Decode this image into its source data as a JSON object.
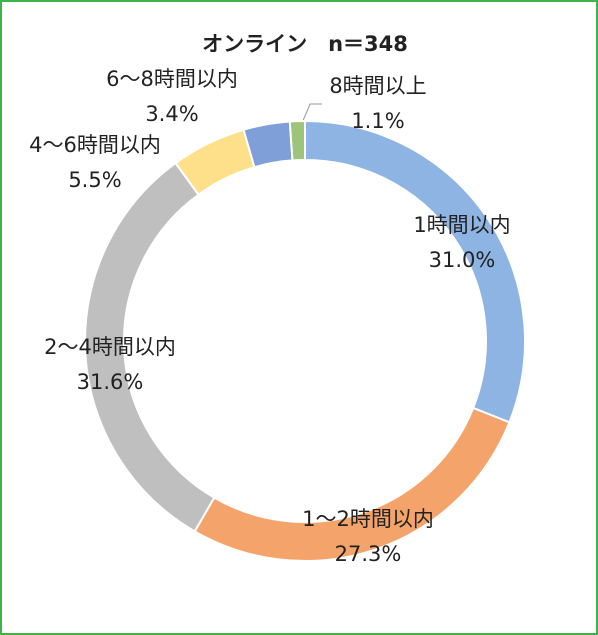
{
  "chart_data": {
    "type": "donut",
    "title": "オンライン　n＝348",
    "categories": [
      "1時間以内",
      "1～2時間以内",
      "2～4時間以内",
      "4～6時間以内",
      "6～8時間以内",
      "8時間以上"
    ],
    "values": [
      31.0,
      27.3,
      31.6,
      5.5,
      3.4,
      1.1
    ],
    "value_labels": [
      "31.0%",
      "27.3%",
      "31.6%",
      "5.5%",
      "3.4%",
      "1.1%"
    ],
    "colors": [
      "#8db4e2",
      "#f4a46a",
      "#bfbfbf",
      "#ffe08a",
      "#7f9fd8",
      "#9dc47a"
    ]
  }
}
